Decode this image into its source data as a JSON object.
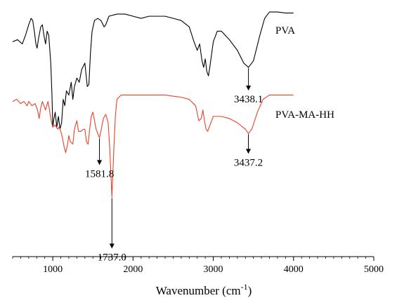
{
  "chart_data": {
    "type": "line",
    "title": "",
    "xlabel": "Wavenumber (cm",
    "xlabel_sup": "-1",
    "xlabel_close": ")",
    "ylabel": "",
    "xlim": [
      500,
      5000
    ],
    "ylim": [
      0,
      100
    ],
    "x_ticks": [
      1000,
      2000,
      3000,
      4000,
      5000
    ],
    "x_tick_labels": [
      "1000",
      "2000",
      "3000",
      "4000",
      "5000"
    ],
    "grid": false,
    "series": [
      {
        "name": "PVA",
        "color": "#000000",
        "points": [
          [
            500,
            85
          ],
          [
            560,
            86
          ],
          [
            620,
            84
          ],
          [
            660,
            88
          ],
          [
            700,
            93
          ],
          [
            730,
            96
          ],
          [
            750,
            95
          ],
          [
            770,
            90
          ],
          [
            790,
            84
          ],
          [
            805,
            82
          ],
          [
            820,
            86
          ],
          [
            850,
            92
          ],
          [
            870,
            93
          ],
          [
            890,
            88
          ],
          [
            910,
            84
          ],
          [
            930,
            90
          ],
          [
            950,
            88
          ],
          [
            975,
            75
          ],
          [
            990,
            60
          ],
          [
            1000,
            45
          ],
          [
            1010,
            48
          ],
          [
            1030,
            52
          ],
          [
            1050,
            45
          ],
          [
            1070,
            50
          ],
          [
            1090,
            44
          ],
          [
            1110,
            47
          ],
          [
            1130,
            58
          ],
          [
            1150,
            55
          ],
          [
            1170,
            62
          ],
          [
            1200,
            60
          ],
          [
            1230,
            66
          ],
          [
            1250,
            58
          ],
          [
            1270,
            64
          ],
          [
            1300,
            68
          ],
          [
            1330,
            66
          ],
          [
            1360,
            72
          ],
          [
            1400,
            75
          ],
          [
            1430,
            64
          ],
          [
            1450,
            65
          ],
          [
            1470,
            80
          ],
          [
            1490,
            90
          ],
          [
            1520,
            95
          ],
          [
            1560,
            96
          ],
          [
            1600,
            95
          ],
          [
            1640,
            92
          ],
          [
            1660,
            93
          ],
          [
            1700,
            97
          ],
          [
            1800,
            98
          ],
          [
            1900,
            98
          ],
          [
            2000,
            97
          ],
          [
            2100,
            96
          ],
          [
            2200,
            97
          ],
          [
            2400,
            97
          ],
          [
            2600,
            95
          ],
          [
            2700,
            92
          ],
          [
            2760,
            85
          ],
          [
            2800,
            81
          ],
          [
            2830,
            84
          ],
          [
            2860,
            76
          ],
          [
            2880,
            73
          ],
          [
            2900,
            77
          ],
          [
            2920,
            71
          ],
          [
            2940,
            69
          ],
          [
            2960,
            74
          ],
          [
            3000,
            85
          ],
          [
            3050,
            90
          ],
          [
            3100,
            90
          ],
          [
            3200,
            86
          ],
          [
            3300,
            81
          ],
          [
            3380,
            75
          ],
          [
            3438.1,
            73
          ],
          [
            3500,
            76
          ],
          [
            3580,
            88
          ],
          [
            3640,
            96
          ],
          [
            3700,
            99
          ],
          [
            3800,
            99
          ],
          [
            3900,
            98.5
          ],
          [
            4000,
            98.5
          ]
        ]
      },
      {
        "name": "PVA-MA-HH",
        "color": "#e8422a",
        "points": [
          [
            500,
            57
          ],
          [
            550,
            58
          ],
          [
            600,
            56
          ],
          [
            640,
            57
          ],
          [
            680,
            55
          ],
          [
            700,
            57
          ],
          [
            740,
            55
          ],
          [
            780,
            56
          ],
          [
            810,
            53
          ],
          [
            830,
            49
          ],
          [
            850,
            54
          ],
          [
            870,
            57
          ],
          [
            890,
            55
          ],
          [
            910,
            53
          ],
          [
            940,
            57
          ],
          [
            960,
            53
          ],
          [
            980,
            48
          ],
          [
            1000,
            45
          ],
          [
            1030,
            46
          ],
          [
            1060,
            44
          ],
          [
            1080,
            45
          ],
          [
            1100,
            43
          ],
          [
            1120,
            40
          ],
          [
            1140,
            36
          ],
          [
            1160,
            33
          ],
          [
            1180,
            36
          ],
          [
            1200,
            41
          ],
          [
            1220,
            38
          ],
          [
            1250,
            37
          ],
          [
            1270,
            44
          ],
          [
            1300,
            48
          ],
          [
            1320,
            43
          ],
          [
            1350,
            43
          ],
          [
            1380,
            44
          ],
          [
            1400,
            44
          ],
          [
            1420,
            38
          ],
          [
            1440,
            37
          ],
          [
            1460,
            44
          ],
          [
            1480,
            50
          ],
          [
            1500,
            52
          ],
          [
            1520,
            48
          ],
          [
            1540,
            44
          ],
          [
            1560,
            42
          ],
          [
            1581.8,
            40
          ],
          [
            1600,
            43
          ],
          [
            1630,
            49
          ],
          [
            1660,
            51
          ],
          [
            1690,
            47
          ],
          [
            1710,
            35
          ],
          [
            1737,
            12
          ],
          [
            1760,
            34
          ],
          [
            1780,
            50
          ],
          [
            1800,
            58
          ],
          [
            1850,
            60
          ],
          [
            1900,
            60
          ],
          [
            2000,
            60
          ],
          [
            2200,
            60
          ],
          [
            2400,
            60
          ],
          [
            2600,
            59
          ],
          [
            2700,
            58
          ],
          [
            2780,
            55
          ],
          [
            2820,
            48
          ],
          [
            2850,
            49
          ],
          [
            2870,
            53
          ],
          [
            2890,
            48
          ],
          [
            2910,
            44
          ],
          [
            2930,
            43
          ],
          [
            2950,
            45
          ],
          [
            3000,
            50
          ],
          [
            3100,
            50
          ],
          [
            3200,
            49
          ],
          [
            3300,
            47
          ],
          [
            3400,
            44
          ],
          [
            3437.2,
            42
          ],
          [
            3480,
            44
          ],
          [
            3550,
            52
          ],
          [
            3620,
            58
          ],
          [
            3700,
            60
          ],
          [
            3800,
            60
          ],
          [
            4000,
            60
          ]
        ]
      }
    ],
    "labels": [
      {
        "text": "PVA",
        "series": 0
      },
      {
        "text": "PVA-MA-HH",
        "series": 1
      }
    ],
    "annotations": [
      {
        "text": "3438.1",
        "x": 3438.1,
        "series": 0
      },
      {
        "text": "3437.2",
        "x": 3437.2,
        "series": 1
      },
      {
        "text": "1581.8",
        "x": 1581.8,
        "series": 1
      },
      {
        "text": "1737.0",
        "x": 1737.0,
        "series": 1
      }
    ]
  }
}
